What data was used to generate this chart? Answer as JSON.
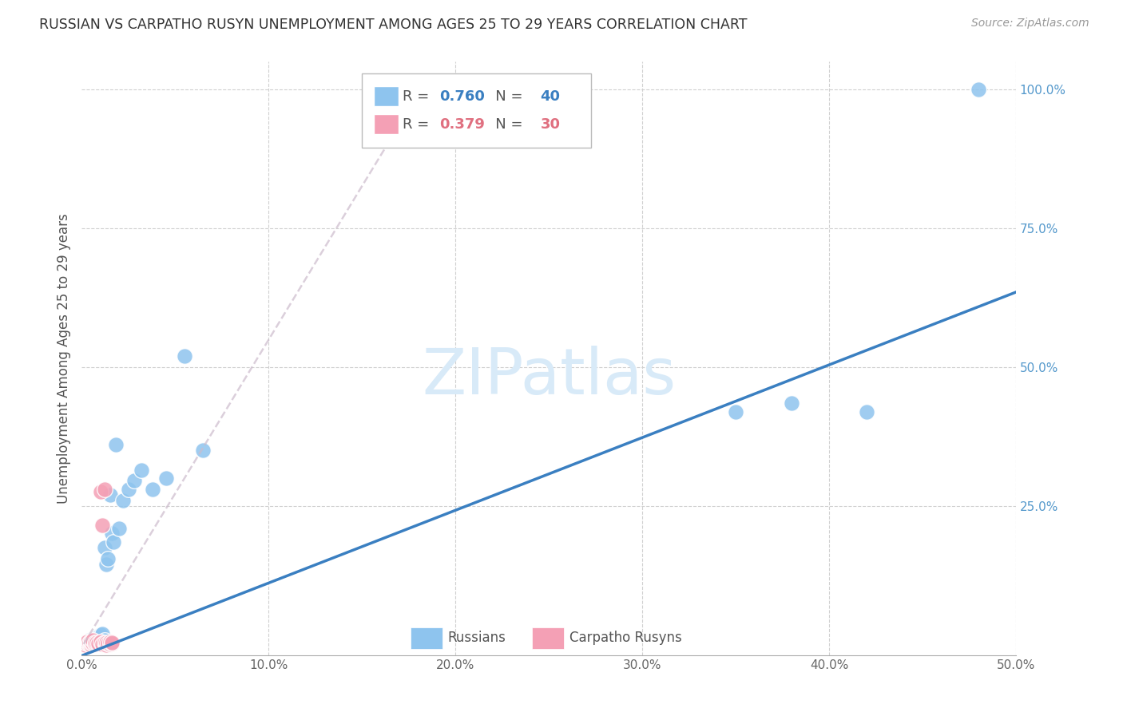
{
  "title": "RUSSIAN VS CARPATHO RUSYN UNEMPLOYMENT AMONG AGES 25 TO 29 YEARS CORRELATION CHART",
  "source": "Source: ZipAtlas.com",
  "ylabel": "Unemployment Among Ages 25 to 29 years",
  "xlim": [
    0,
    0.5
  ],
  "ylim": [
    -0.02,
    1.05
  ],
  "russian_R": 0.76,
  "russian_N": 40,
  "carpatho_R": 0.379,
  "carpatho_N": 30,
  "russian_color": "#8EC4EE",
  "carpatho_color": "#F4A0B5",
  "russian_line_color": "#3A7FC1",
  "carpatho_line_color": "#E8A0B0",
  "background_color": "#FFFFFF",
  "grid_color": "#D0D0D0",
  "title_color": "#333333",
  "axis_label_color": "#555555",
  "right_tick_color": "#5599CC",
  "watermark_color": "#D8EAF8",
  "russian_x": [
    0.001,
    0.002,
    0.002,
    0.003,
    0.003,
    0.004,
    0.004,
    0.005,
    0.005,
    0.006,
    0.006,
    0.007,
    0.007,
    0.008,
    0.008,
    0.009,
    0.01,
    0.01,
    0.011,
    0.012,
    0.012,
    0.013,
    0.014,
    0.015,
    0.016,
    0.017,
    0.018,
    0.02,
    0.022,
    0.025,
    0.028,
    0.032,
    0.038,
    0.045,
    0.055,
    0.065,
    0.35,
    0.38,
    0.42,
    0.48
  ],
  "russian_y": [
    0.0,
    0.002,
    0.004,
    0.001,
    0.003,
    0.005,
    0.008,
    0.002,
    0.007,
    0.004,
    0.01,
    0.003,
    0.006,
    0.002,
    0.012,
    0.015,
    0.005,
    0.018,
    0.02,
    0.008,
    0.175,
    0.145,
    0.155,
    0.27,
    0.2,
    0.185,
    0.36,
    0.21,
    0.26,
    0.28,
    0.295,
    0.315,
    0.28,
    0.3,
    0.52,
    0.35,
    0.42,
    0.435,
    0.42,
    1.0
  ],
  "carpatho_x": [
    0.001,
    0.001,
    0.002,
    0.002,
    0.003,
    0.003,
    0.004,
    0.004,
    0.005,
    0.005,
    0.005,
    0.006,
    0.006,
    0.007,
    0.007,
    0.008,
    0.009,
    0.01,
    0.011,
    0.012,
    0.013,
    0.013,
    0.014,
    0.015,
    0.015,
    0.016,
    0.016,
    0.01,
    0.011,
    0.012
  ],
  "carpatho_y": [
    0.001,
    0.003,
    0.0,
    0.004,
    0.002,
    0.005,
    0.001,
    0.003,
    0.0,
    0.004,
    0.006,
    0.002,
    0.008,
    0.001,
    0.004,
    0.003,
    0.002,
    0.005,
    0.001,
    0.003,
    0.0,
    0.004,
    0.002,
    0.001,
    0.005,
    0.002,
    0.003,
    0.275,
    0.215,
    0.28
  ],
  "russian_line_x": [
    0.0,
    0.5
  ],
  "russian_line_y": [
    -0.02,
    0.635
  ],
  "carpatho_line_x": [
    0.001,
    0.185
  ],
  "carpatho_line_y": [
    0.001,
    1.02
  ],
  "xtick_positions": [
    0.0,
    0.1,
    0.2,
    0.3,
    0.4,
    0.5
  ],
  "xtick_labels": [
    "0.0%",
    "10.0%",
    "20.0%",
    "30.0%",
    "40.0%",
    "50.0%"
  ],
  "ytick_right_positions": [
    0.25,
    0.5,
    0.75,
    1.0
  ],
  "ytick_right_labels": [
    "25.0%",
    "50.0%",
    "75.0%",
    "100.0%"
  ]
}
